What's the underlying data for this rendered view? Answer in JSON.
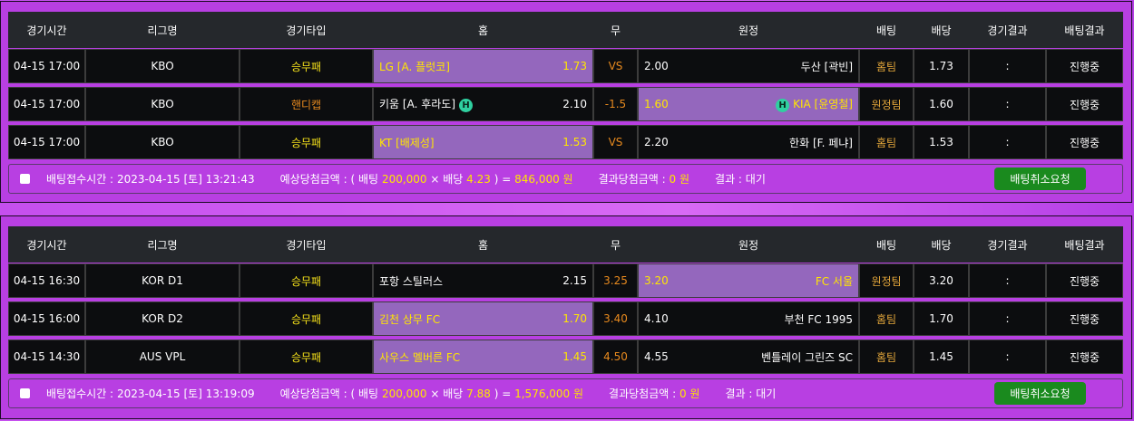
{
  "headers": [
    "경기시간",
    "리그명",
    "경기타입",
    "홈",
    "무",
    "원정",
    "배팅",
    "배당",
    "경기결과",
    "배팅결과"
  ],
  "colors": {
    "background": "#b83fe2",
    "selected": "#9467bd",
    "selected_text": "#ffe600",
    "cancel_button": "#1a8a1e",
    "badge": "#2fd0a0"
  },
  "slips": [
    {
      "rows": [
        {
          "time": "04-15 17:00",
          "league": "KBO",
          "type": "승무패",
          "type_color": "yellow",
          "home": "LG [A. 플럿코]",
          "home_odds": "1.73",
          "draw": "VS",
          "away_odds": "2.00",
          "away": "두산 [곽빈]",
          "pick": "홈팀",
          "odds": "1.73",
          "score": ":",
          "result": "진행중",
          "selected": "home",
          "handicap_badge": false
        },
        {
          "time": "04-15 17:00",
          "league": "KBO",
          "type": "핸디캡",
          "type_color": "orange",
          "home": "키움 [A. 후라도]",
          "home_odds": "2.10",
          "draw": "-1.5",
          "away_odds": "1.60",
          "away": "KIA [윤영철]",
          "pick": "원정팀",
          "odds": "1.60",
          "score": ":",
          "result": "진행중",
          "selected": "away",
          "handicap_badge": true,
          "badge_label": "H"
        },
        {
          "time": "04-15 17:00",
          "league": "KBO",
          "type": "승무패",
          "type_color": "yellow",
          "home": "KT [배제성]",
          "home_odds": "1.53",
          "draw": "VS",
          "away_odds": "2.20",
          "away": "한화 [F. 페냐]",
          "pick": "홈팀",
          "odds": "1.53",
          "score": ":",
          "result": "진행중",
          "selected": "home",
          "handicap_badge": false
        }
      ],
      "footer": {
        "time_label": "배팅접수시간 :",
        "time": "2023-04-15 [토] 13:21:43",
        "expected_label": "예상당첨금액 : ( 배팅",
        "stake": "200,000",
        "times": "× 배당",
        "total_odds": "4.23",
        "eq": ") =",
        "payout": "846,000 원",
        "result_amount_label": "결과당첨금액 :",
        "result_amount": "0 원",
        "status_label": "결과 : 대기",
        "cancel": "배팅취소요청"
      }
    },
    {
      "rows": [
        {
          "time": "04-15 16:30",
          "league": "KOR D1",
          "type": "승무패",
          "type_color": "yellow",
          "home": "포항 스틸러스",
          "home_odds": "2.15",
          "draw": "3.25",
          "away_odds": "3.20",
          "away": "FC 서울",
          "pick": "원정팀",
          "odds": "3.20",
          "score": ":",
          "result": "진행중",
          "selected": "away",
          "handicap_badge": false
        },
        {
          "time": "04-15 16:00",
          "league": "KOR D2",
          "type": "승무패",
          "type_color": "yellow",
          "home": "김천 상무 FC",
          "home_odds": "1.70",
          "draw": "3.40",
          "away_odds": "4.10",
          "away": "부천 FC 1995",
          "pick": "홈팀",
          "odds": "1.70",
          "score": ":",
          "result": "진행중",
          "selected": "home",
          "handicap_badge": false
        },
        {
          "time": "04-15 14:30",
          "league": "AUS VPL",
          "type": "승무패",
          "type_color": "yellow",
          "home": "사우스 멜버른 FC",
          "home_odds": "1.45",
          "draw": "4.50",
          "away_odds": "4.55",
          "away": "벤틀레이 그린즈 SC",
          "pick": "홈팀",
          "odds": "1.45",
          "score": ":",
          "result": "진행중",
          "selected": "home",
          "handicap_badge": false
        }
      ],
      "footer": {
        "time_label": "배팅접수시간 :",
        "time": "2023-04-15 [토] 13:19:09",
        "expected_label": "예상당첨금액 : ( 배팅",
        "stake": "200,000",
        "times": "× 배당",
        "total_odds": "7.88",
        "eq": ") =",
        "payout": "1,576,000 원",
        "result_amount_label": "결과당첨금액 :",
        "result_amount": "0 원",
        "status_label": "결과 : 대기",
        "cancel": "배팅취소요청"
      }
    }
  ]
}
